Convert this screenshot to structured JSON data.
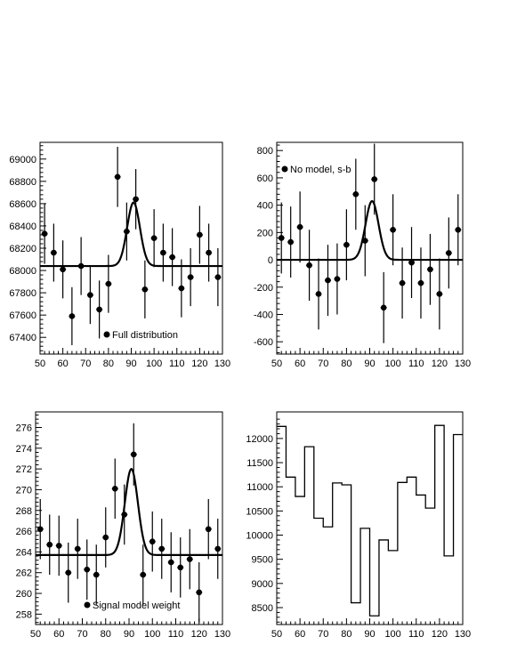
{
  "chart_data": [
    {
      "type": "scatter",
      "title": "",
      "xlabel": "",
      "ylabel": "",
      "xlim": [
        50,
        130
      ],
      "ylim": [
        67250,
        69150
      ],
      "xticks": [
        50,
        60,
        70,
        80,
        90,
        100,
        110,
        120,
        130
      ],
      "yticks": [
        67400,
        67600,
        67800,
        68000,
        68200,
        68400,
        68600,
        68800,
        69000
      ],
      "legend": {
        "label": "Full distribution",
        "position": "bottom-center"
      },
      "series": [
        {
          "kind": "points-with-errors",
          "x": [
            52,
            56,
            60,
            64,
            68,
            72,
            76,
            80,
            84,
            88,
            92,
            96,
            100,
            104,
            108,
            112,
            116,
            120,
            124,
            128
          ],
          "y": [
            68330,
            68160,
            68010,
            67590,
            68040,
            67780,
            67650,
            67880,
            68840,
            68350,
            68640,
            67830,
            68290,
            68160,
            68120,
            67840,
            67940,
            68320,
            68160,
            67940
          ],
          "err": [
            270,
            260,
            260,
            260,
            260,
            260,
            260,
            260,
            270,
            260,
            270,
            260,
            260,
            260,
            260,
            260,
            260,
            260,
            260,
            260
          ]
        },
        {
          "kind": "curve",
          "model": "gaussian-plus-constant",
          "baseline": 68040,
          "amplitude": 570,
          "mean": 91,
          "sigma": 2.8
        }
      ]
    },
    {
      "type": "scatter",
      "title": "",
      "xlabel": "",
      "ylabel": "",
      "xlim": [
        50,
        130
      ],
      "ylim": [
        -690,
        860
      ],
      "xticks": [
        50,
        60,
        70,
        80,
        90,
        100,
        110,
        120,
        130
      ],
      "yticks": [
        -600,
        -400,
        -200,
        0,
        200,
        400,
        600,
        800
      ],
      "legend": {
        "label": "No model, s-b",
        "position": "top-left"
      },
      "series": [
        {
          "kind": "points-with-errors",
          "x": [
            52,
            56,
            60,
            64,
            68,
            72,
            76,
            80,
            84,
            88,
            92,
            96,
            100,
            104,
            108,
            112,
            116,
            120,
            124,
            128
          ],
          "y": [
            160,
            130,
            240,
            -40,
            -250,
            -150,
            -140,
            110,
            480,
            140,
            590,
            -350,
            220,
            -170,
            -20,
            -170,
            -70,
            -250,
            50,
            220
          ],
          "err": [
            260,
            260,
            260,
            260,
            260,
            260,
            260,
            260,
            260,
            260,
            260,
            260,
            260,
            260,
            260,
            260,
            260,
            260,
            260,
            260
          ]
        },
        {
          "kind": "curve",
          "model": "gaussian-plus-constant",
          "baseline": 0,
          "amplitude": 430,
          "mean": 91,
          "sigma": 2.8
        }
      ]
    },
    {
      "type": "scatter",
      "title": "",
      "xlabel": "",
      "ylabel": "",
      "xlim": [
        50,
        130
      ],
      "ylim": [
        257,
        277.5
      ],
      "xticks": [
        50,
        60,
        70,
        80,
        90,
        100,
        110,
        120,
        130
      ],
      "yticks": [
        258,
        260,
        262,
        264,
        266,
        268,
        270,
        272,
        274,
        276
      ],
      "legend": {
        "label": "Signal model weight",
        "position": "bottom-center"
      },
      "series": [
        {
          "kind": "points-with-errors",
          "x": [
            52,
            56,
            60,
            64,
            68,
            72,
            76,
            80,
            84,
            88,
            92,
            96,
            100,
            104,
            108,
            112,
            116,
            120,
            124,
            128
          ],
          "y": [
            266.2,
            264.7,
            264.6,
            262.0,
            264.3,
            262.3,
            261.8,
            265.4,
            270.1,
            267.6,
            273.4,
            261.8,
            265.0,
            264.3,
            263.0,
            262.5,
            263.3,
            260.1,
            266.2,
            264.3
          ],
          "err": [
            2.9,
            2.9,
            2.9,
            2.9,
            2.9,
            2.9,
            2.9,
            2.9,
            2.9,
            2.9,
            3.0,
            2.9,
            2.9,
            2.9,
            2.9,
            2.9,
            2.9,
            2.9,
            2.9,
            2.9
          ]
        },
        {
          "kind": "curve",
          "model": "gaussian-plus-constant",
          "baseline": 263.7,
          "amplitude": 8.3,
          "mean": 91,
          "sigma": 2.8
        }
      ]
    },
    {
      "type": "bar",
      "title": "",
      "xlabel": "",
      "ylabel": "",
      "style": "step-histogram",
      "xlim": [
        50,
        130
      ],
      "ylim": [
        8150,
        12550
      ],
      "xticks": [
        50,
        60,
        70,
        80,
        90,
        100,
        110,
        120,
        130
      ],
      "yticks": [
        8500,
        9000,
        9500,
        10000,
        10500,
        11000,
        11500,
        12000
      ],
      "bin_edges": [
        50,
        54,
        58,
        62,
        66,
        70,
        74,
        78,
        82,
        86,
        90,
        94,
        98,
        102,
        106,
        110,
        114,
        118,
        122,
        126,
        130
      ],
      "values": [
        12250,
        11200,
        10800,
        11830,
        10350,
        10170,
        11080,
        11040,
        8600,
        10140,
        8330,
        9900,
        9680,
        11090,
        11200,
        10830,
        10560,
        12270,
        9570,
        12080
      ]
    }
  ]
}
